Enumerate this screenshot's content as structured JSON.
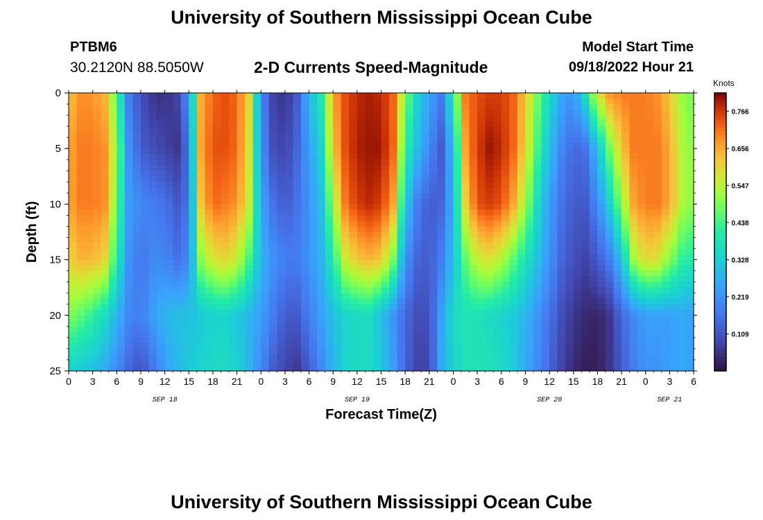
{
  "header": {
    "title": "University of Southern Mississippi Ocean Cube",
    "station_id": "PTBM6",
    "station_coords": "30.2120N  88.5050W",
    "plot_title": "2-D Currents Speed-Magnitude",
    "model_start_label": "Model Start Time",
    "model_start_value": "09/18/2022 Hour 21"
  },
  "footer": {
    "title": "University of Southern Mississippi Ocean Cube"
  },
  "chart_data": {
    "type": "heatmap",
    "title": "2-D Currents Speed-Magnitude",
    "xlabel": "Forecast Time(Z)",
    "ylabel": "Depth (ft)",
    "x_ticks": [
      "0",
      "3",
      "6",
      "9",
      "12",
      "15",
      "18",
      "21",
      "0",
      "3",
      "6",
      "9",
      "12",
      "15",
      "18",
      "21",
      "0",
      "3",
      "6",
      "9",
      "12",
      "15",
      "18",
      "21",
      "0",
      "3",
      "6"
    ],
    "x_tick_hours": [
      0,
      3,
      6,
      9,
      12,
      15,
      18,
      21,
      24,
      27,
      30,
      33,
      36,
      39,
      42,
      45,
      48,
      51,
      54,
      57,
      60,
      63,
      66,
      69,
      72,
      75,
      78
    ],
    "date_labels": [
      {
        "label": "SEP 18",
        "hour": 12
      },
      {
        "label": "SEP 19",
        "hour": 36
      },
      {
        "label": "SEP 20",
        "hour": 60
      },
      {
        "label": "SEP 21",
        "hour": 75
      }
    ],
    "y_ticks": [
      0,
      5,
      10,
      15,
      20,
      25
    ],
    "xlim": [
      0,
      78
    ],
    "ylim": [
      0,
      25
    ],
    "y_inverted": true,
    "colorbar": {
      "label": "Knots",
      "ticks": [
        "0.766",
        "0.656",
        "0.547",
        "0.438",
        "0.328",
        "0.219",
        "0.109"
      ],
      "tick_values": [
        0.766,
        0.656,
        0.547,
        0.438,
        0.328,
        0.219,
        0.109
      ],
      "range": [
        0.0,
        0.82
      ]
    },
    "approx_speed_profile_knots": {
      "hours": [
        0,
        1.5,
        3,
        4.5,
        6,
        7.5,
        9,
        10.5,
        12,
        13.5,
        15,
        16.5,
        18,
        19.5,
        21,
        22.5,
        24,
        25.5,
        27,
        28.5,
        30,
        31.5,
        33,
        34.5,
        36,
        37.5,
        39,
        40.5,
        42,
        43.5,
        45,
        46.5,
        48,
        49.5,
        51,
        52.5,
        54,
        55.5,
        57,
        58.5,
        60,
        61.5,
        63,
        64.5,
        66,
        67.5,
        69,
        70.5,
        72,
        73.5,
        75,
        76.5,
        78
      ],
      "depths_ft": [
        0,
        5,
        10,
        15,
        20,
        25
      ],
      "speed": [
        [
          0.62,
          0.68,
          0.68,
          0.64,
          0.45,
          0.18,
          0.1,
          0.06,
          0.05,
          0.08,
          0.22,
          0.65,
          0.72,
          0.74,
          0.72,
          0.6,
          0.2,
          0.08,
          0.05,
          0.12,
          0.28,
          0.4,
          0.66,
          0.74,
          0.78,
          0.79,
          0.78,
          0.72,
          0.5,
          0.34,
          0.25,
          0.18,
          0.4,
          0.7,
          0.74,
          0.76,
          0.76,
          0.72,
          0.62,
          0.48,
          0.36,
          0.26,
          0.22,
          0.38,
          0.58,
          0.68,
          0.7,
          0.7,
          0.7,
          0.68,
          0.62,
          0.52,
          0.48
        ],
        [
          0.66,
          0.7,
          0.7,
          0.68,
          0.52,
          0.22,
          0.12,
          0.1,
          0.08,
          0.06,
          0.16,
          0.66,
          0.74,
          0.74,
          0.72,
          0.58,
          0.22,
          0.1,
          0.08,
          0.14,
          0.24,
          0.34,
          0.62,
          0.74,
          0.79,
          0.8,
          0.8,
          0.72,
          0.42,
          0.3,
          0.2,
          0.12,
          0.3,
          0.66,
          0.76,
          0.8,
          0.78,
          0.72,
          0.6,
          0.44,
          0.3,
          0.2,
          0.14,
          0.16,
          0.3,
          0.48,
          0.62,
          0.7,
          0.7,
          0.7,
          0.66,
          0.54,
          0.5
        ],
        [
          0.66,
          0.7,
          0.7,
          0.68,
          0.48,
          0.24,
          0.2,
          0.18,
          0.16,
          0.12,
          0.16,
          0.62,
          0.72,
          0.7,
          0.68,
          0.56,
          0.26,
          0.16,
          0.12,
          0.16,
          0.22,
          0.3,
          0.52,
          0.7,
          0.76,
          0.78,
          0.76,
          0.66,
          0.32,
          0.18,
          0.12,
          0.14,
          0.28,
          0.6,
          0.74,
          0.76,
          0.74,
          0.66,
          0.52,
          0.36,
          0.24,
          0.16,
          0.12,
          0.12,
          0.2,
          0.34,
          0.5,
          0.66,
          0.7,
          0.7,
          0.66,
          0.54,
          0.5
        ],
        [
          0.6,
          0.64,
          0.64,
          0.6,
          0.4,
          0.22,
          0.16,
          0.2,
          0.2,
          0.16,
          0.2,
          0.5,
          0.58,
          0.6,
          0.56,
          0.44,
          0.28,
          0.22,
          0.18,
          0.18,
          0.22,
          0.28,
          0.4,
          0.56,
          0.62,
          0.64,
          0.62,
          0.48,
          0.22,
          0.14,
          0.12,
          0.18,
          0.3,
          0.46,
          0.56,
          0.58,
          0.54,
          0.46,
          0.38,
          0.3,
          0.22,
          0.14,
          0.1,
          0.08,
          0.12,
          0.18,
          0.3,
          0.52,
          0.6,
          0.58,
          0.5,
          0.42,
          0.4
        ],
        [
          0.5,
          0.46,
          0.42,
          0.36,
          0.28,
          0.2,
          0.18,
          0.24,
          0.28,
          0.3,
          0.3,
          0.32,
          0.34,
          0.34,
          0.32,
          0.28,
          0.24,
          0.18,
          0.12,
          0.12,
          0.18,
          0.24,
          0.3,
          0.34,
          0.36,
          0.36,
          0.3,
          0.22,
          0.14,
          0.1,
          0.1,
          0.24,
          0.36,
          0.38,
          0.38,
          0.36,
          0.34,
          0.32,
          0.28,
          0.22,
          0.16,
          0.1,
          0.06,
          0.04,
          0.03,
          0.06,
          0.14,
          0.2,
          0.24,
          0.24,
          0.24,
          0.26,
          0.24
        ],
        [
          0.34,
          0.32,
          0.3,
          0.26,
          0.2,
          0.14,
          0.1,
          0.16,
          0.24,
          0.28,
          0.32,
          0.34,
          0.36,
          0.36,
          0.34,
          0.28,
          0.2,
          0.12,
          0.08,
          0.06,
          0.12,
          0.2,
          0.28,
          0.34,
          0.36,
          0.36,
          0.32,
          0.24,
          0.14,
          0.08,
          0.08,
          0.26,
          0.34,
          0.38,
          0.38,
          0.38,
          0.36,
          0.32,
          0.26,
          0.2,
          0.14,
          0.08,
          0.04,
          0.02,
          0.02,
          0.06,
          0.12,
          0.18,
          0.22,
          0.22,
          0.24,
          0.26,
          0.24
        ]
      ]
    }
  }
}
